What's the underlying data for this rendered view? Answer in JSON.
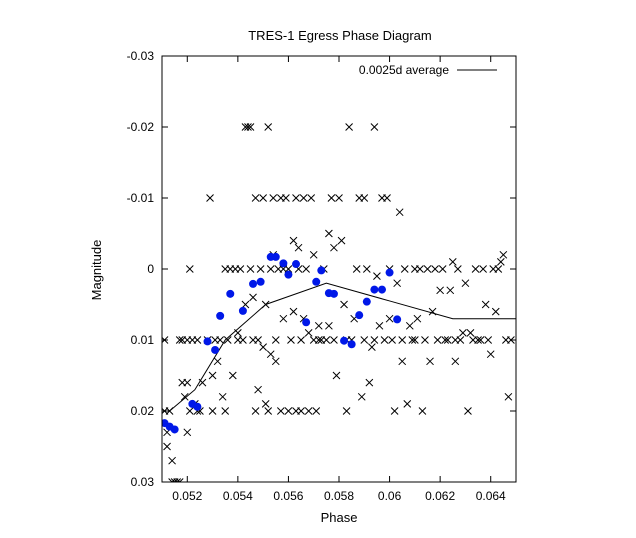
{
  "chart_data": {
    "type": "scatter",
    "title": "TRES-1 Egress Phase Diagram",
    "xlabel": "Phase",
    "ylabel": "Magnitude",
    "xlim": [
      0.051,
      0.065
    ],
    "ylim": [
      0.03,
      -0.03
    ],
    "y_reversed": true,
    "grid": false,
    "legend_position": "top-right",
    "x_ticks": [
      "0.052",
      "0.054",
      "0.056",
      "0.058",
      "0.06",
      "0.062",
      "0.064"
    ],
    "x_tick_values": [
      0.052,
      0.054,
      0.056,
      0.058,
      0.06,
      0.062,
      0.064
    ],
    "y_ticks": [
      "-0.03",
      "-0.02",
      "-0.01",
      "0",
      "0.01",
      "0.02",
      "0.03"
    ],
    "y_tick_values": [
      -0.03,
      -0.02,
      -0.01,
      0,
      0.01,
      0.02,
      0.03
    ],
    "series": [
      {
        "name": "",
        "marker": "x",
        "color": "#000000",
        "points": [
          [
            0.0511,
            0.01
          ],
          [
            0.0511,
            0.02
          ],
          [
            0.0512,
            0.023
          ],
          [
            0.0512,
            0.025
          ],
          [
            0.0513,
            0.02
          ],
          [
            0.0514,
            0.03
          ],
          [
            0.0514,
            0.027
          ],
          [
            0.0515,
            0.03
          ],
          [
            0.0516,
            0.03
          ],
          [
            0.0517,
            0.03
          ],
          [
            0.0517,
            0.01
          ],
          [
            0.0518,
            0.016
          ],
          [
            0.0518,
            0.01
          ],
          [
            0.0519,
            0.018
          ],
          [
            0.052,
            0.023
          ],
          [
            0.052,
            0.016
          ],
          [
            0.052,
            0.01
          ],
          [
            0.0521,
            0.0
          ],
          [
            0.0521,
            0.02
          ],
          [
            0.0522,
            0.01
          ],
          [
            0.0523,
            0.019
          ],
          [
            0.0524,
            0.02
          ],
          [
            0.0524,
            0.01
          ],
          [
            0.0525,
            0.02
          ],
          [
            0.0526,
            0.016
          ],
          [
            0.0528,
            0.01
          ],
          [
            0.0529,
            -0.01
          ],
          [
            0.053,
            0.02
          ],
          [
            0.053,
            0.015
          ],
          [
            0.0531,
            0.01
          ],
          [
            0.0532,
            0.013
          ],
          [
            0.0533,
            0.01
          ],
          [
            0.0534,
            0.018
          ],
          [
            0.0535,
            0.02
          ],
          [
            0.0535,
            0.0
          ],
          [
            0.0536,
            0.01
          ],
          [
            0.0537,
            0.0
          ],
          [
            0.0538,
            0.015
          ],
          [
            0.0539,
            0.0
          ],
          [
            0.054,
            0.01
          ],
          [
            0.054,
            0.009
          ],
          [
            0.0541,
            0.0
          ],
          [
            0.0542,
            0.01
          ],
          [
            0.0543,
            -0.02
          ],
          [
            0.0543,
            0.005
          ],
          [
            0.0544,
            -0.02
          ],
          [
            0.0545,
            -0.02
          ],
          [
            0.0545,
            0.0
          ],
          [
            0.0546,
            0.01
          ],
          [
            0.0546,
            0.004
          ],
          [
            0.0547,
            -0.01
          ],
          [
            0.0547,
            0.02
          ],
          [
            0.0548,
            0.017
          ],
          [
            0.0548,
            0.01
          ],
          [
            0.0549,
            0.0
          ],
          [
            0.055,
            -0.01
          ],
          [
            0.055,
            0.011
          ],
          [
            0.0551,
            0.019
          ],
          [
            0.0551,
            0.005
          ],
          [
            0.0552,
            -0.02
          ],
          [
            0.0552,
            0.02
          ],
          [
            0.0553,
            0.012
          ],
          [
            0.0553,
            0.0
          ],
          [
            0.0554,
            -0.01
          ],
          [
            0.0554,
            -0.002
          ],
          [
            0.0555,
            0.01
          ],
          [
            0.0555,
            0.013
          ],
          [
            0.0556,
            0.0
          ],
          [
            0.0557,
            -0.01
          ],
          [
            0.0557,
            0.02
          ],
          [
            0.0558,
            0.007
          ],
          [
            0.0558,
            0.0
          ],
          [
            0.0559,
            -0.01
          ],
          [
            0.056,
            0.0
          ],
          [
            0.056,
            0.02
          ],
          [
            0.0561,
            0.01
          ],
          [
            0.0562,
            -0.004
          ],
          [
            0.0562,
            0.006
          ],
          [
            0.0563,
            -0.01
          ],
          [
            0.0563,
            0.02
          ],
          [
            0.0564,
            0.0
          ],
          [
            0.0564,
            -0.003
          ],
          [
            0.0565,
            0.01
          ],
          [
            0.0565,
            0.02
          ],
          [
            0.0566,
            0.007
          ],
          [
            0.0566,
            -0.01
          ],
          [
            0.0567,
            0.0
          ],
          [
            0.0568,
            0.02
          ],
          [
            0.0568,
            0.009
          ],
          [
            0.0569,
            -0.01
          ],
          [
            0.057,
            0.01
          ],
          [
            0.057,
            -0.002
          ],
          [
            0.0571,
            0.02
          ],
          [
            0.0572,
            0.008
          ],
          [
            0.0572,
            0.01
          ],
          [
            0.0573,
            0.01
          ],
          [
            0.0574,
            0.0
          ],
          [
            0.0575,
            0.01
          ],
          [
            0.0576,
            0.008
          ],
          [
            0.0576,
            -0.005
          ],
          [
            0.0577,
            -0.01
          ],
          [
            0.0578,
            0.01
          ],
          [
            0.0578,
            -0.003
          ],
          [
            0.0579,
            0.015
          ],
          [
            0.058,
            -0.01
          ],
          [
            0.0581,
            -0.004
          ],
          [
            0.0582,
            0.005
          ],
          [
            0.0583,
            0.02
          ],
          [
            0.0583,
            0.01
          ],
          [
            0.0584,
            -0.02
          ],
          [
            0.0585,
            0.01
          ],
          [
            0.0586,
            0.007
          ],
          [
            0.0587,
            0.0
          ],
          [
            0.0588,
            -0.01
          ],
          [
            0.0589,
            0.018
          ],
          [
            0.059,
            0.01
          ],
          [
            0.059,
            -0.01
          ],
          [
            0.0591,
            0.0
          ],
          [
            0.0592,
            0.016
          ],
          [
            0.0593,
            0.011
          ],
          [
            0.0594,
            -0.02
          ],
          [
            0.0594,
            0.01
          ],
          [
            0.0595,
            0.001
          ],
          [
            0.0596,
            0.008
          ],
          [
            0.0597,
            -0.01
          ],
          [
            0.0598,
            0.01
          ],
          [
            0.0599,
            -0.01
          ],
          [
            0.06,
            0.007
          ],
          [
            0.06,
            0.0
          ],
          [
            0.0601,
            0.01
          ],
          [
            0.0602,
            0.02
          ],
          [
            0.0603,
            0.002
          ],
          [
            0.0604,
            -0.008
          ],
          [
            0.0605,
            0.01
          ],
          [
            0.0605,
            0.013
          ],
          [
            0.0606,
            0.0
          ],
          [
            0.0607,
            0.019
          ],
          [
            0.0608,
            0.008
          ],
          [
            0.0609,
            0.01
          ],
          [
            0.061,
            0.0
          ],
          [
            0.061,
            0.01
          ],
          [
            0.0611,
            0.007
          ],
          [
            0.0612,
            0.0
          ],
          [
            0.0613,
            0.02
          ],
          [
            0.0614,
            0.01
          ],
          [
            0.0615,
            0.0
          ],
          [
            0.0616,
            0.013
          ],
          [
            0.0617,
            0.006
          ],
          [
            0.0618,
            0.0
          ],
          [
            0.0619,
            0.01
          ],
          [
            0.062,
            0.003
          ],
          [
            0.0621,
            0.0
          ],
          [
            0.0622,
            0.01
          ],
          [
            0.0623,
            0.01
          ],
          [
            0.0624,
            0.003
          ],
          [
            0.0625,
            -0.001
          ],
          [
            0.0626,
            0.01
          ],
          [
            0.0626,
            0.013
          ],
          [
            0.0627,
            0.0
          ],
          [
            0.0628,
            0.01
          ],
          [
            0.0629,
            0.009
          ],
          [
            0.063,
            0.002
          ],
          [
            0.0631,
            0.02
          ],
          [
            0.0632,
            0.009
          ],
          [
            0.0633,
            0.01
          ],
          [
            0.0634,
            0.0
          ],
          [
            0.0635,
            0.01
          ],
          [
            0.0636,
            0.01
          ],
          [
            0.0637,
            0.0
          ],
          [
            0.0638,
            0.005
          ],
          [
            0.0639,
            0.01
          ],
          [
            0.064,
            0.012
          ],
          [
            0.0641,
            0.0
          ],
          [
            0.0642,
            0.006
          ],
          [
            0.0643,
            0.0
          ],
          [
            0.0644,
            -0.001
          ],
          [
            0.0645,
            -0.002
          ],
          [
            0.0646,
            0.01
          ],
          [
            0.0647,
            0.018
          ],
          [
            0.0648,
            0.01
          ]
        ]
      },
      {
        "name": "",
        "marker": "filled-circle",
        "color": "#0018e8",
        "points": [
          [
            0.0511,
            0.0217
          ],
          [
            0.0513,
            0.0222
          ],
          [
            0.0515,
            0.0226
          ],
          [
            0.0522,
            0.019
          ],
          [
            0.0524,
            0.0194
          ],
          [
            0.0528,
            0.0102
          ],
          [
            0.0531,
            0.0114
          ],
          [
            0.0533,
            0.0066
          ],
          [
            0.0537,
            0.0035
          ],
          [
            0.0542,
            0.0059
          ],
          [
            0.0546,
            0.0021
          ],
          [
            0.0549,
            0.0018
          ],
          [
            0.0553,
            -0.0017
          ],
          [
            0.0555,
            -0.0017
          ],
          [
            0.0558,
            -0.0008
          ],
          [
            0.056,
            0.0008
          ],
          [
            0.0563,
            -0.0007
          ],
          [
            0.0567,
            0.0075
          ],
          [
            0.0571,
            0.0018
          ],
          [
            0.0573,
            0.0002
          ],
          [
            0.0576,
            0.0034
          ],
          [
            0.0578,
            0.0035
          ],
          [
            0.0582,
            0.0101
          ],
          [
            0.0585,
            0.0106
          ],
          [
            0.0588,
            0.0065
          ],
          [
            0.0591,
            0.0046
          ],
          [
            0.0594,
            0.0029
          ],
          [
            0.0597,
            0.0029
          ],
          [
            0.06,
            0.0005
          ],
          [
            0.0603,
            0.0071
          ]
        ]
      },
      {
        "name": "0.0025d average",
        "marker": "line",
        "color": "#000000",
        "points": [
          [
            0.0511,
            0.02
          ],
          [
            0.0513,
            0.02
          ],
          [
            0.0523,
            0.017
          ],
          [
            0.0535,
            0.01
          ],
          [
            0.0551,
            0.005
          ],
          [
            0.0575,
            0.002
          ],
          [
            0.06,
            0.0045
          ],
          [
            0.0625,
            0.007
          ],
          [
            0.065,
            0.007
          ]
        ]
      }
    ]
  }
}
